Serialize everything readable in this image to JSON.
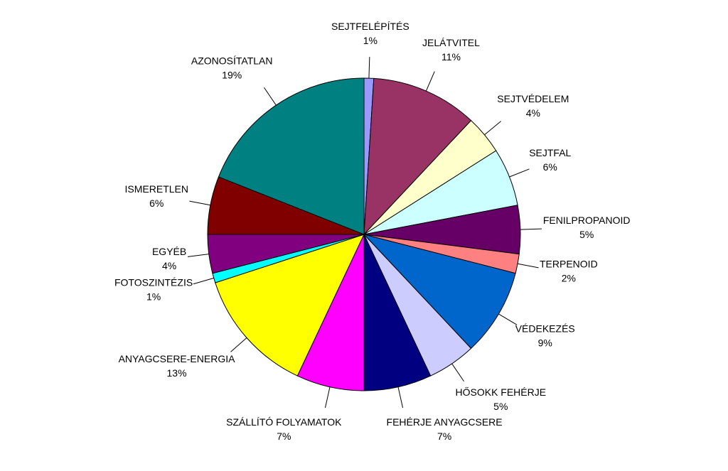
{
  "chart_data": {
    "type": "pie",
    "categories": [
      "SEJTFELÉPÍTÉS",
      "JELÁTVITEL",
      "SEJTVÉDELEM",
      "SEJTFAL",
      "FENILPROPANOID",
      "TERPENOID",
      "VÉDEKEZÉS",
      "HŐSOKK FEHÉRJE",
      "FEHÉRJE ANYAGCSERE",
      "SZÁLLÍTÓ FOLYAMATOK",
      "ANYAGCSERE-ENERGIA",
      "FOTOSZINTÉZIS",
      "EGYÉB",
      "ISMERETLEN",
      "AZONOSÍTATLAN"
    ],
    "values": [
      1,
      11,
      4,
      6,
      5,
      2,
      9,
      5,
      7,
      7,
      13,
      1,
      4,
      6,
      19
    ],
    "value_labels": [
      "1%",
      "11%",
      "4%",
      "6%",
      "5%",
      "2%",
      "9%",
      "5%",
      "7%",
      "7%",
      "13%",
      "1%",
      "4%",
      "6%",
      "19%"
    ],
    "colors": [
      "#9999ff",
      "#993366",
      "#ffffcc",
      "#ccffff",
      "#660066",
      "#ff8080",
      "#0066cc",
      "#ccccff",
      "#000080",
      "#ff00ff",
      "#ffff00",
      "#00ffff",
      "#800080",
      "#800000",
      "#008080"
    ]
  }
}
